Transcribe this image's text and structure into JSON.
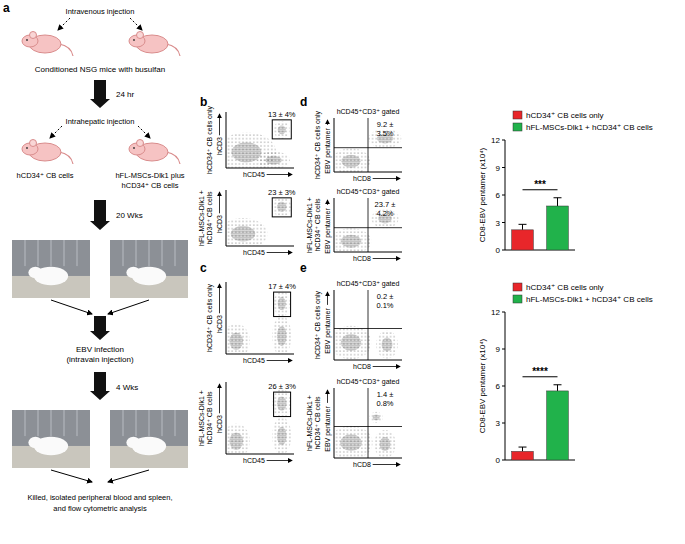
{
  "figure": {
    "panel_labels": [
      "a",
      "b",
      "c",
      "d",
      "e"
    ]
  },
  "schematic": {
    "top_label": "Intravenous injection",
    "conditioning": "Conditioned NSG mice with busulfan",
    "step1": "24 hr",
    "injection": "Intrahepatic injection",
    "groups": [
      [
        "hCD34⁺ CB cells"
      ],
      [
        "hFL-MSCs-Dlk1 plus",
        "hCD34⁺ CB cells"
      ]
    ],
    "step2": "20 Wks",
    "infection": [
      "EBV infection",
      "(intravain injection)"
    ],
    "step3": "4 Wks",
    "final": [
      "Killed, isolated peripheral blood and spleen,",
      "and flow cytometric analysis"
    ]
  },
  "chart_data": [
    {
      "type": "scatter",
      "subtitle": [
        "hCD34⁺ CB cells only"
      ],
      "x_label": "hCD45",
      "y_label": "hCD3",
      "xlim": [
        0,
        100
      ],
      "ylim": [
        0,
        100
      ],
      "tick_labels": false,
      "populations": [
        {
          "x": 30,
          "y": 28,
          "sx": 22,
          "sy": 18
        },
        {
          "x": 70,
          "y": 14,
          "sx": 12,
          "sy": 8
        },
        {
          "x": 82,
          "y": 68,
          "sx": 6,
          "sy": 8
        }
      ],
      "gate": {
        "x": [
          68,
          96
        ],
        "y": [
          52,
          86
        ]
      },
      "annotations": [
        "13 ± 4%"
      ]
    },
    {
      "type": "scatter",
      "subtitle": [
        "hFL-MSCs-Dlk1 +",
        "hCD34⁺ CB cells"
      ],
      "x_label": "hCD45",
      "y_label": "hCD3",
      "xlim": [
        0,
        100
      ],
      "ylim": [
        0,
        100
      ],
      "tick_labels": false,
      "populations": [
        {
          "x": 25,
          "y": 22,
          "sx": 18,
          "sy": 14
        },
        {
          "x": 82,
          "y": 70,
          "sx": 7,
          "sy": 9
        }
      ],
      "gate": {
        "x": [
          68,
          96
        ],
        "y": [
          52,
          86
        ]
      },
      "annotations": [
        "23 ± 3%"
      ]
    },
    {
      "type": "scatter",
      "subtitle": [
        "hCD34⁺ CB cells only"
      ],
      "x_label": "hCD45",
      "y_label": "hCD3",
      "xlim": [
        0,
        100
      ],
      "ylim": [
        0,
        100
      ],
      "tick_labels": false,
      "populations": [
        {
          "x": 15,
          "y": 18,
          "sx": 10,
          "sy": 12
        },
        {
          "x": 82,
          "y": 25,
          "sx": 7,
          "sy": 14
        },
        {
          "x": 82,
          "y": 70,
          "sx": 6,
          "sy": 9
        }
      ],
      "gate": {
        "x": [
          70,
          95
        ],
        "y": [
          52,
          86
        ]
      },
      "annotations": [
        "17 ± 4%"
      ]
    },
    {
      "type": "scatter",
      "subtitle": [
        "hFL-MSCs-Dlk1 +",
        "hCD34⁺ CB cells"
      ],
      "x_label": "hCD45",
      "y_label": "hCD3",
      "xlim": [
        0,
        100
      ],
      "ylim": [
        0,
        100
      ],
      "tick_labels": false,
      "populations": [
        {
          "x": 15,
          "y": 18,
          "sx": 10,
          "sy": 12
        },
        {
          "x": 82,
          "y": 25,
          "sx": 7,
          "sy": 13
        },
        {
          "x": 82,
          "y": 70,
          "sx": 7,
          "sy": 10
        }
      ],
      "gate": {
        "x": [
          70,
          95
        ],
        "y": [
          52,
          86
        ]
      },
      "annotations": [
        "26 ± 3%"
      ]
    },
    {
      "type": "scatter",
      "title": "hCD45⁺CD3⁺ gated",
      "subtitle": [
        "hCD34⁺ CB cells only"
      ],
      "x_label": "hCD8",
      "y_label": "EBV pentamer",
      "xlim": [
        0,
        100
      ],
      "ylim": [
        0,
        100
      ],
      "tick_labels": false,
      "populations": [
        {
          "x": 75,
          "y": 62,
          "sx": 12,
          "sy": 9
        },
        {
          "x": 25,
          "y": 20,
          "sx": 14,
          "sy": 12
        }
      ],
      "quadrant": {
        "x": 50,
        "y": 45
      },
      "annotations": [
        "9.2 ±",
        "3.5%"
      ]
    },
    {
      "type": "scatter",
      "title": "hCD45⁺CD3⁺ gated",
      "subtitle": [
        "hFL-MSCs-Dlk1 +",
        "hCD34⁺ CB cells"
      ],
      "x_label": "hCD8",
      "y_label": "EBV pentamer",
      "xlim": [
        0,
        100
      ],
      "ylim": [
        0,
        100
      ],
      "tick_labels": false,
      "populations": [
        {
          "x": 75,
          "y": 62,
          "sx": 10,
          "sy": 9
        },
        {
          "x": 25,
          "y": 20,
          "sx": 15,
          "sy": 12
        }
      ],
      "quadrant": {
        "x": 50,
        "y": 45
      },
      "annotations": [
        "23.7 ±",
        "4.2%"
      ]
    },
    {
      "type": "scatter",
      "title": "hCD45⁺CD3⁺ gated",
      "subtitle": [
        "hCD34⁺ CB cells only"
      ],
      "x_label": "hCD8",
      "y_label": "EBV pentamer",
      "xlim": [
        0,
        100
      ],
      "ylim": [
        0,
        100
      ],
      "tick_labels": false,
      "populations": [
        {
          "x": 25,
          "y": 25,
          "sx": 15,
          "sy": 12
        },
        {
          "x": 78,
          "y": 22,
          "sx": 8,
          "sy": 10
        }
      ],
      "quadrant": {
        "x": 50,
        "y": 45
      },
      "annotations": [
        "0.2 ±",
        "0.1%"
      ]
    },
    {
      "type": "scatter",
      "title": "hCD45⁺CD3⁺ gated",
      "subtitle": [
        "hFL-MSCs-Dlk1 +",
        "hCD34⁺ CB cells"
      ],
      "x_label": "hCD8",
      "y_label": "EBV pentamer",
      "xlim": [
        0,
        100
      ],
      "ylim": [
        0,
        100
      ],
      "tick_labels": false,
      "populations": [
        {
          "x": 25,
          "y": 22,
          "sx": 16,
          "sy": 12
        },
        {
          "x": 75,
          "y": 20,
          "sx": 8,
          "sy": 10
        },
        {
          "x": 62,
          "y": 58,
          "sx": 5,
          "sy": 4
        }
      ],
      "quadrant": {
        "x": 50,
        "y": 45
      },
      "annotations": [
        "1.4 ±",
        "0.8%"
      ]
    },
    {
      "type": "bar",
      "categories": [
        "hCD34⁺ CB cells only",
        "hFL-MSCs-Dlk1 + hCD34⁺ CB cells"
      ],
      "values": [
        2.2,
        4.8
      ],
      "errors": [
        0.6,
        0.9
      ],
      "colors": [
        "#e8262a",
        "#21b24b"
      ],
      "y_label": "CD8-EBV pentamer (x10⁴)",
      "ylim": [
        0,
        12
      ],
      "yticks": [
        0,
        3,
        6,
        9,
        12
      ],
      "legend": "top",
      "tick_labels": "y",
      "annotations": [
        "***"
      ]
    },
    {
      "type": "bar",
      "categories": [
        "hCD34⁺ CB cells only",
        "hFL-MSCs-Dlk1 + hCD34⁺ CB cells"
      ],
      "values": [
        0.7,
        5.6
      ],
      "errors": [
        0.35,
        0.5
      ],
      "colors": [
        "#e8262a",
        "#21b24b"
      ],
      "y_label": "CD8-EBV pentamer (x10⁴)",
      "ylim": [
        0,
        12
      ],
      "yticks": [
        0,
        3,
        6,
        9,
        12
      ],
      "legend": "top",
      "tick_labels": "y",
      "annotations": [
        "****"
      ]
    }
  ]
}
